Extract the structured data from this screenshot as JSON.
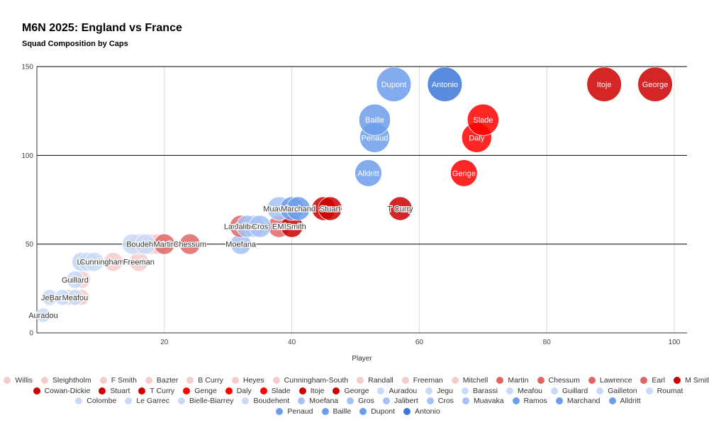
{
  "chart_data": {
    "type": "scatter",
    "title": "M6N 2025: England vs France",
    "subtitle": "Squad Composition by Caps",
    "xlabel": "Player",
    "ylabel": "",
    "xlim": [
      0,
      102
    ],
    "ylim": [
      0,
      150
    ],
    "xticks": [
      "20",
      "40",
      "60",
      "80",
      "100"
    ],
    "yticks": [
      "0",
      "50",
      "100",
      "150"
    ],
    "grid": true,
    "legend_position": "bottom",
    "series": [
      {
        "name": "Willis",
        "team": "England",
        "x": 7,
        "y": 20,
        "color": "#f4cccc"
      },
      {
        "name": "Sleightholm",
        "team": "England",
        "x": 6,
        "y": 20,
        "color": "#f4cccc"
      },
      {
        "name": "F Smith",
        "team": "England",
        "x": 7,
        "y": 30,
        "color": "#f4cccc"
      },
      {
        "name": "Bazter",
        "team": "England",
        "x": 5,
        "y": 20,
        "color": "#f4cccc"
      },
      {
        "name": "B Curry",
        "team": "England",
        "x": 6,
        "y": 20,
        "color": "#f4cccc"
      },
      {
        "name": "Heyes",
        "team": "England",
        "x": 16,
        "y": 50,
        "color": "#f4cccc"
      },
      {
        "name": "Cunningham-South",
        "team": "England",
        "x": 12,
        "y": 40,
        "color": "#f4cccc"
      },
      {
        "name": "Randall",
        "team": "England",
        "x": 18,
        "y": 50,
        "color": "#f4cccc"
      },
      {
        "name": "Freeman",
        "team": "England",
        "x": 16,
        "y": 40,
        "color": "#f4cccc"
      },
      {
        "name": "Mitchell",
        "team": "England",
        "x": 19,
        "y": 50,
        "color": "#f4cccc"
      },
      {
        "name": "Martin",
        "team": "England",
        "x": 20,
        "y": 50,
        "color": "#e06666"
      },
      {
        "name": "Chessum",
        "team": "England",
        "x": 24,
        "y": 50,
        "color": "#e06666"
      },
      {
        "name": "Lawrence",
        "team": "England",
        "x": 32,
        "y": 60,
        "color": "#e06666"
      },
      {
        "name": "Earl",
        "team": "England",
        "x": 38,
        "y": 60,
        "color": "#e06666"
      },
      {
        "name": "M Smith",
        "team": "England",
        "x": 40,
        "y": 60,
        "color": "#cc0000"
      },
      {
        "name": "Cowan-Dickie",
        "team": "England",
        "x": 45,
        "y": 70,
        "color": "#cc0000"
      },
      {
        "name": "Stuart",
        "team": "England",
        "x": 46,
        "y": 70,
        "color": "#cc0000"
      },
      {
        "name": "T Curry",
        "team": "England",
        "x": 57,
        "y": 70,
        "color": "#cc0000"
      },
      {
        "name": "Genge",
        "team": "England",
        "x": 67,
        "y": 90,
        "color": "#ff0000"
      },
      {
        "name": "Daly",
        "team": "England",
        "x": 69,
        "y": 110,
        "color": "#ff0000"
      },
      {
        "name": "Slade",
        "team": "England",
        "x": 70,
        "y": 120,
        "color": "#ff0000"
      },
      {
        "name": "Itoje",
        "team": "England",
        "x": 89,
        "y": 140,
        "color": "#cc0000"
      },
      {
        "name": "George",
        "team": "England",
        "x": 97,
        "y": 140,
        "color": "#cc0000"
      },
      {
        "name": "Auradou",
        "team": "France",
        "x": 1,
        "y": 10,
        "color": "#c9daf8"
      },
      {
        "name": "Jegu",
        "team": "France",
        "x": 2,
        "y": 20,
        "color": "#c9daf8"
      },
      {
        "name": "Barassi",
        "team": "France",
        "x": 4,
        "y": 20,
        "color": "#c9daf8"
      },
      {
        "name": "Meafou",
        "team": "France",
        "x": 6,
        "y": 20,
        "color": "#c9daf8"
      },
      {
        "name": "Guillard",
        "team": "France",
        "x": 6,
        "y": 30,
        "color": "#c9daf8"
      },
      {
        "name": "Gailleton",
        "team": "France",
        "x": 7,
        "y": 40,
        "color": "#c9daf8"
      },
      {
        "name": "Roumat",
        "team": "France",
        "x": 7,
        "y": 40,
        "color": "#c9daf8"
      },
      {
        "name": "Colombe",
        "team": "France",
        "x": 8,
        "y": 40,
        "color": "#c9daf8"
      },
      {
        "name": "Le Garrec",
        "team": "France",
        "x": 9,
        "y": 40,
        "color": "#c9daf8"
      },
      {
        "name": "Bielle-Biarrey",
        "team": "France",
        "x": 15,
        "y": 50,
        "color": "#c9daf8"
      },
      {
        "name": "Boudehent",
        "team": "France",
        "x": 17,
        "y": 50,
        "color": "#c9daf8"
      },
      {
        "name": "Moefana",
        "team": "France",
        "x": 32,
        "y": 50,
        "color": "#a4c2f4"
      },
      {
        "name": "Gros",
        "team": "France",
        "x": 34,
        "y": 60,
        "color": "#a4c2f4"
      },
      {
        "name": "Jalibert",
        "team": "France",
        "x": 33,
        "y": 60,
        "color": "#a4c2f4"
      },
      {
        "name": "Cros",
        "team": "France",
        "x": 35,
        "y": 60,
        "color": "#a4c2f4"
      },
      {
        "name": "Muavaka",
        "team": "France",
        "x": 38,
        "y": 70,
        "color": "#a4c2f4"
      },
      {
        "name": "Ramos",
        "team": "France",
        "x": 40,
        "y": 70,
        "color": "#6d9eeb"
      },
      {
        "name": "Marchand",
        "team": "France",
        "x": 41,
        "y": 70,
        "color": "#6d9eeb"
      },
      {
        "name": "Alldritt",
        "team": "France",
        "x": 52,
        "y": 90,
        "color": "#6d9eeb"
      },
      {
        "name": "Penaud",
        "team": "France",
        "x": 53,
        "y": 110,
        "color": "#6d9eeb"
      },
      {
        "name": "Baille",
        "team": "France",
        "x": 53,
        "y": 120,
        "color": "#6d9eeb"
      },
      {
        "name": "Dupont",
        "team": "France",
        "x": 56,
        "y": 140,
        "color": "#6d9eeb"
      },
      {
        "name": "Antonio",
        "team": "France",
        "x": 64,
        "y": 140,
        "color": "#3c78d8"
      }
    ],
    "point_labels": [
      {
        "text": "Auradou",
        "x": 1,
        "y": 10
      },
      {
        "text": "Jegu",
        "x": 2,
        "y": 20
      },
      {
        "text": "Barassi",
        "x": 4,
        "y": 20
      },
      {
        "text": "Meafou",
        "x": 6,
        "y": 20
      },
      {
        "text": "Guillard",
        "x": 6,
        "y": 30
      },
      {
        "text": "Le Garrec",
        "x": 9,
        "y": 40
      },
      {
        "text": "Cunningham-South",
        "x": 12,
        "y": 40
      },
      {
        "text": "Freeman",
        "x": 16,
        "y": 40
      },
      {
        "text": "Boudehent",
        "x": 17,
        "y": 50
      },
      {
        "text": "Martin",
        "x": 20,
        "y": 50
      },
      {
        "text": "Chessum",
        "x": 24,
        "y": 50
      },
      {
        "text": "Moefana",
        "x": 32,
        "y": 50
      },
      {
        "text": "Lawrence",
        "x": 32,
        "y": 60
      },
      {
        "text": "Jalibert",
        "x": 33,
        "y": 60
      },
      {
        "text": "Cros",
        "x": 35,
        "y": 60
      },
      {
        "text": "Earl",
        "x": 38,
        "y": 60
      },
      {
        "text": "M Smith",
        "x": 40,
        "y": 60
      },
      {
        "text": "Muavaka",
        "x": 38,
        "y": 70
      },
      {
        "text": "Marchand",
        "x": 41,
        "y": 70
      },
      {
        "text": "Stuart",
        "x": 46,
        "y": 70
      },
      {
        "text": "T Curry",
        "x": 57,
        "y": 70
      },
      {
        "text": "Alldritt",
        "x": 52,
        "y": 90
      },
      {
        "text": "Penaud",
        "x": 53,
        "y": 110
      },
      {
        "text": "Baille",
        "x": 53,
        "y": 120
      },
      {
        "text": "Dupont",
        "x": 56,
        "y": 140
      },
      {
        "text": "Antonio",
        "x": 64,
        "y": 140
      },
      {
        "text": "Genge",
        "x": 67,
        "y": 90
      },
      {
        "text": "Daly",
        "x": 69,
        "y": 110
      },
      {
        "text": "Slade",
        "x": 70,
        "y": 120
      },
      {
        "text": "Itoje",
        "x": 89,
        "y": 140
      },
      {
        "text": "George",
        "x": 97,
        "y": 140
      }
    ]
  }
}
